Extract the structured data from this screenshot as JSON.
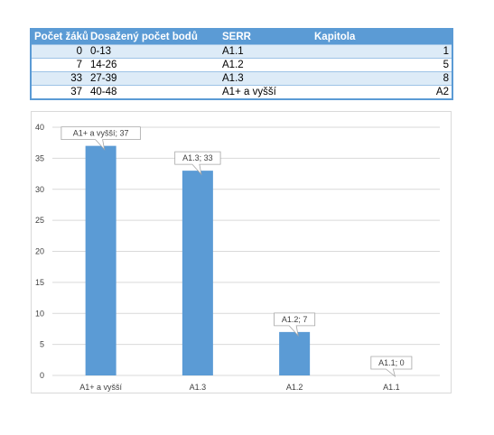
{
  "table": {
    "headers": [
      "Počet žáků",
      "Dosažený počet bodů",
      "SERR",
      "Kapitola"
    ],
    "rows": [
      [
        "0",
        "0-13",
        "A1.1",
        "1"
      ],
      [
        "7",
        "14-26",
        "A1.2",
        "5"
      ],
      [
        "33",
        "27-39",
        "A1.3",
        "8"
      ],
      [
        "37",
        "40-48",
        "A1+ a vyšší",
        "A2"
      ]
    ]
  },
  "chart_data": {
    "type": "bar",
    "categories": [
      "A1+ a vyšší",
      "A1.3",
      "A1.2",
      "A1.1"
    ],
    "values": [
      37,
      33,
      7,
      0
    ],
    "data_labels": [
      "A1+ a vyšší; 37",
      "A1.3; 33",
      "A1.2; 7",
      "A1.1; 0"
    ],
    "ylim": [
      0,
      40
    ],
    "yticks": [
      0,
      5,
      10,
      15,
      20,
      25,
      30,
      35,
      40
    ],
    "grid": true,
    "legend": "none",
    "colors": {
      "bar": "#5b9bd5",
      "grid": "#d9d9d9"
    }
  }
}
